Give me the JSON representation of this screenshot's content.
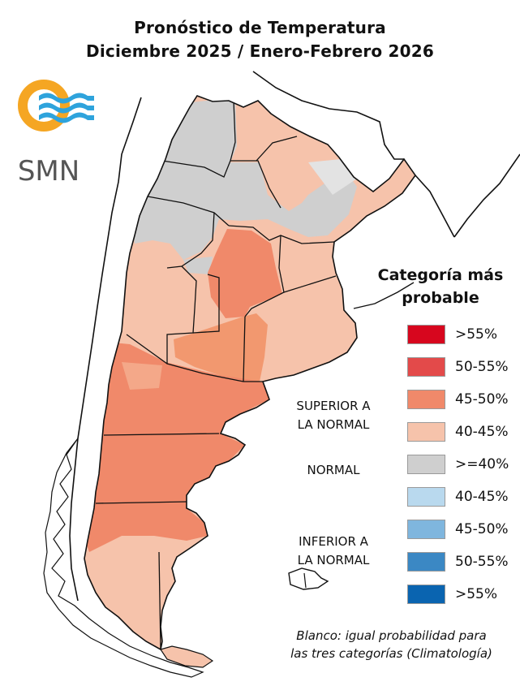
{
  "title": {
    "line1": "Pronóstico de Temperatura",
    "line2": "Diciembre 2025 / Enero-Febrero 2026"
  },
  "logo": {
    "text": "SMN",
    "icon": "smn-sun-waves-logo-icon",
    "sun_color": "#F5A623",
    "wave_color": "#2EA3DC",
    "text_color": "#555555"
  },
  "legend": {
    "title_line1": "Categoría más",
    "title_line2": "probable",
    "groups": {
      "superior_line1": "SUPERIOR A",
      "superior_line2": "LA NORMAL",
      "normal": "NORMAL",
      "inferior_line1": "INFERIOR A",
      "inferior_line2": "LA NORMAL"
    },
    "items": [
      {
        "label": ">55%",
        "color": "#D7061E"
      },
      {
        "label": "50-55%",
        "color": "#E34A4A"
      },
      {
        "label": "45-50%",
        "color": "#F0896A"
      },
      {
        "label": "40-45%",
        "color": "#F6C3AB"
      },
      {
        "label": ">=40%",
        "color": "#CFCFCF"
      },
      {
        "label": "40-45%",
        "color": "#B9D9EE"
      },
      {
        "label": "45-50%",
        "color": "#7FB6DE"
      },
      {
        "label": "50-55%",
        "color": "#3B88C4"
      },
      {
        "label": ">55%",
        "color": "#0A64B0"
      }
    ]
  },
  "note": {
    "line1": "Blanco: igual probabilidad para",
    "line2": "las tres categorías (Climatología)"
  }
}
